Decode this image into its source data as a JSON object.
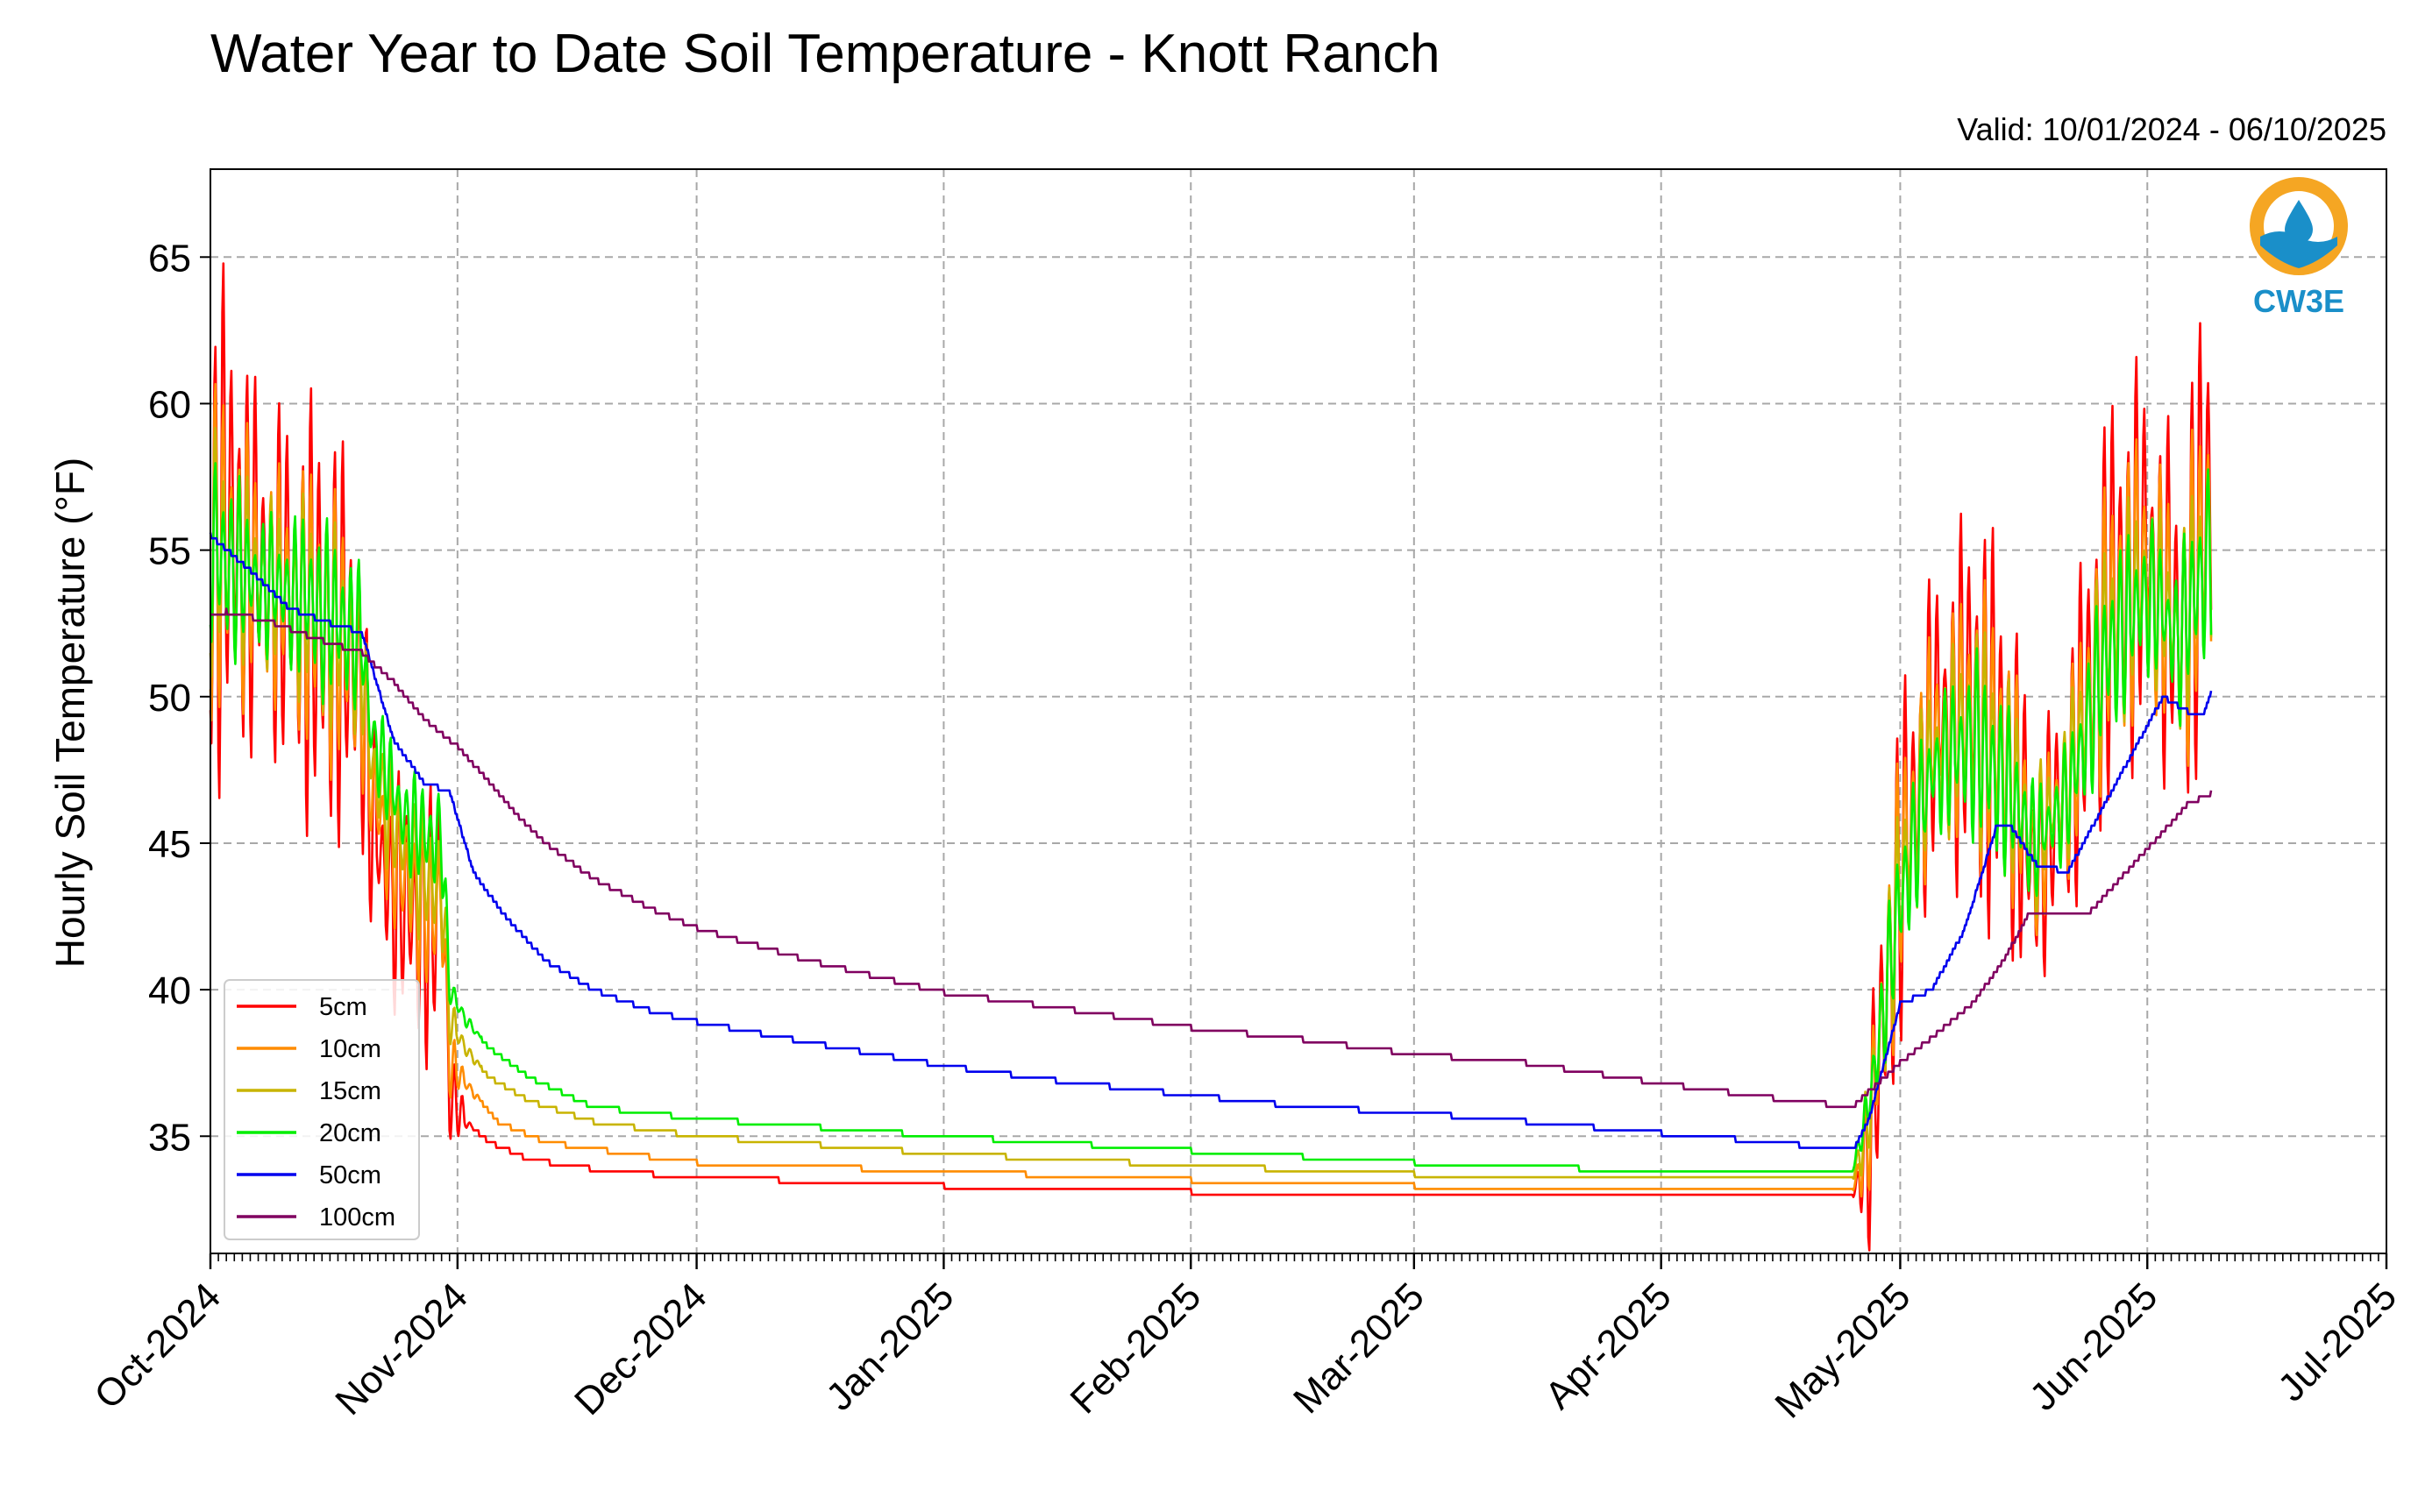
{
  "chart_data": {
    "type": "line",
    "title": "Water Year to Date Soil Temperature - Knott Ranch",
    "subtitle": "Valid: 10/01/2024 - 06/10/2025",
    "ylabel": "Hourly Soil Temperature (°F)",
    "xlabel": "",
    "x_range": [
      "2024-10-01",
      "2025-07-01"
    ],
    "ylim": [
      31,
      68
    ],
    "yticks": [
      35,
      40,
      45,
      50,
      55,
      60,
      65
    ],
    "xticks": [
      {
        "date": "2024-10-01",
        "label": "Oct-2024"
      },
      {
        "date": "2024-11-01",
        "label": "Nov-2024"
      },
      {
        "date": "2024-12-01",
        "label": "Dec-2024"
      },
      {
        "date": "2025-01-01",
        "label": "Jan-2025"
      },
      {
        "date": "2025-02-01",
        "label": "Feb-2025"
      },
      {
        "date": "2025-03-01",
        "label": "Mar-2025"
      },
      {
        "date": "2025-04-01",
        "label": "Apr-2025"
      },
      {
        "date": "2025-05-01",
        "label": "May-2025"
      },
      {
        "date": "2025-06-01",
        "label": "Jun-2025"
      },
      {
        "date": "2025-07-01",
        "label": "Jul-2025"
      }
    ],
    "grid": true,
    "legend_position": "lower-left",
    "series": [
      {
        "name": "5cm",
        "color": "#ff0000",
        "points": [
          [
            "2024-10-01",
            55.0
          ],
          [
            "2024-10-03",
            56.0
          ],
          [
            "2024-10-06",
            54.5
          ],
          [
            "2024-10-09",
            54.0
          ],
          [
            "2024-10-13",
            53.0
          ],
          [
            "2024-10-17",
            52.0
          ],
          [
            "2024-10-20",
            50.5
          ],
          [
            "2024-10-21",
            46.0
          ],
          [
            "2024-10-23",
            44.0
          ],
          [
            "2024-10-25",
            43.0
          ],
          [
            "2024-10-27",
            42.5
          ],
          [
            "2024-10-29",
            42.0
          ],
          [
            "2024-10-30",
            44.0
          ],
          [
            "2024-10-31",
            36.5
          ],
          [
            "2024-11-02",
            35.5
          ],
          [
            "2024-11-05",
            34.8
          ],
          [
            "2024-11-10",
            34.2
          ],
          [
            "2024-11-20",
            33.8
          ],
          [
            "2024-12-01",
            33.6
          ],
          [
            "2025-01-01",
            33.3
          ],
          [
            "2025-02-01",
            33.1
          ],
          [
            "2025-03-01",
            33.0
          ],
          [
            "2025-04-01",
            32.9
          ],
          [
            "2025-04-25",
            32.9
          ],
          [
            "2025-04-27",
            34.5
          ],
          [
            "2025-05-01",
            44.0
          ],
          [
            "2025-05-05",
            49.0
          ],
          [
            "2025-05-10",
            50.0
          ],
          [
            "2025-05-14",
            48.0
          ],
          [
            "2025-05-18",
            44.0
          ],
          [
            "2025-05-22",
            47.0
          ],
          [
            "2025-05-27",
            53.0
          ],
          [
            "2025-06-01",
            55.0
          ],
          [
            "2025-06-05",
            52.0
          ],
          [
            "2025-06-09",
            57.0
          ]
        ],
        "amplitude": [
          [
            "2024-10-01",
            7.5
          ],
          [
            "2024-10-20",
            6.0
          ],
          [
            "2024-10-21",
            4.5
          ],
          [
            "2024-10-30",
            4.0
          ],
          [
            "2024-10-31",
            1.5
          ],
          [
            "2024-11-03",
            0.0
          ],
          [
            "2025-04-25",
            0.0
          ],
          [
            "2025-04-27",
            3.0
          ],
          [
            "2025-05-01",
            5.5
          ],
          [
            "2025-05-10",
            6.5
          ],
          [
            "2025-05-20",
            4.5
          ],
          [
            "2025-06-01",
            7.0
          ],
          [
            "2025-06-09",
            7.0
          ]
        ]
      },
      {
        "name": "10cm",
        "color": "#ff8c00",
        "points": [
          [
            "2024-10-01",
            55.0
          ],
          [
            "2024-10-06",
            54.3
          ],
          [
            "2024-10-13",
            53.2
          ],
          [
            "2024-10-20",
            51.0
          ],
          [
            "2024-10-21",
            47.0
          ],
          [
            "2024-10-25",
            44.0
          ],
          [
            "2024-10-29",
            42.5
          ],
          [
            "2024-10-30",
            43.5
          ],
          [
            "2024-10-31",
            37.5
          ],
          [
            "2024-11-03",
            36.5
          ],
          [
            "2024-11-06",
            35.5
          ],
          [
            "2024-11-12",
            34.8
          ],
          [
            "2024-11-25",
            34.3
          ],
          [
            "2024-12-01",
            34.1
          ],
          [
            "2025-01-01",
            33.8
          ],
          [
            "2025-02-01",
            33.5
          ],
          [
            "2025-03-01",
            33.3
          ],
          [
            "2025-04-01",
            33.1
          ],
          [
            "2025-04-25",
            33.1
          ],
          [
            "2025-04-27",
            35.0
          ],
          [
            "2025-05-01",
            44.0
          ],
          [
            "2025-05-05",
            48.5
          ],
          [
            "2025-05-10",
            49.5
          ],
          [
            "2025-05-14",
            48.0
          ],
          [
            "2025-05-18",
            44.5
          ],
          [
            "2025-05-22",
            47.0
          ],
          [
            "2025-05-27",
            52.5
          ],
          [
            "2025-06-01",
            54.5
          ],
          [
            "2025-06-05",
            52.0
          ],
          [
            "2025-06-09",
            56.0
          ]
        ],
        "amplitude": [
          [
            "2024-10-01",
            5.0
          ],
          [
            "2024-10-20",
            4.0
          ],
          [
            "2024-10-21",
            3.0
          ],
          [
            "2024-10-30",
            2.5
          ],
          [
            "2024-10-31",
            1.0
          ],
          [
            "2024-11-04",
            0.0
          ],
          [
            "2025-04-25",
            0.0
          ],
          [
            "2025-04-27",
            2.0
          ],
          [
            "2025-05-01",
            4.0
          ],
          [
            "2025-05-10",
            4.5
          ],
          [
            "2025-05-20",
            3.0
          ],
          [
            "2025-06-01",
            5.0
          ],
          [
            "2025-06-09",
            5.0
          ]
        ]
      },
      {
        "name": "15cm",
        "color": "#c8b400",
        "points": [
          [
            "2024-10-01",
            55.0
          ],
          [
            "2024-10-06",
            54.2
          ],
          [
            "2024-10-13",
            53.3
          ],
          [
            "2024-10-20",
            51.5
          ],
          [
            "2024-10-21",
            48.0
          ],
          [
            "2024-10-25",
            45.0
          ],
          [
            "2024-10-29",
            43.5
          ],
          [
            "2024-10-30",
            44.0
          ],
          [
            "2024-10-31",
            39.0
          ],
          [
            "2024-11-02",
            38.0
          ],
          [
            "2024-11-05",
            37.0
          ],
          [
            "2024-11-10",
            36.2
          ],
          [
            "2024-11-18",
            35.5
          ],
          [
            "2024-12-01",
            35.0
          ],
          [
            "2025-01-01",
            34.4
          ],
          [
            "2025-02-01",
            34.0
          ],
          [
            "2025-03-01",
            33.7
          ],
          [
            "2025-04-01",
            33.5
          ],
          [
            "2025-04-25",
            33.5
          ],
          [
            "2025-04-27",
            35.5
          ],
          [
            "2025-05-01",
            43.5
          ],
          [
            "2025-05-05",
            48.0
          ],
          [
            "2025-05-10",
            49.0
          ],
          [
            "2025-05-14",
            47.5
          ],
          [
            "2025-05-18",
            45.0
          ],
          [
            "2025-05-22",
            47.0
          ],
          [
            "2025-05-27",
            52.0
          ],
          [
            "2025-06-01",
            54.0
          ],
          [
            "2025-06-05",
            52.0
          ],
          [
            "2025-06-09",
            55.5
          ]
        ],
        "amplitude": [
          [
            "2024-10-01",
            3.5
          ],
          [
            "2024-10-20",
            3.0
          ],
          [
            "2024-10-21",
            2.5
          ],
          [
            "2024-10-30",
            2.0
          ],
          [
            "2024-10-31",
            0.8
          ],
          [
            "2024-11-04",
            0.0
          ],
          [
            "2025-04-25",
            0.0
          ],
          [
            "2025-04-27",
            1.5
          ],
          [
            "2025-05-01",
            3.0
          ],
          [
            "2025-05-10",
            3.5
          ],
          [
            "2025-05-20",
            2.5
          ],
          [
            "2025-06-01",
            3.5
          ],
          [
            "2025-06-09",
            3.5
          ]
        ]
      },
      {
        "name": "20cm",
        "color": "#00ee00",
        "points": [
          [
            "2024-10-01",
            55.0
          ],
          [
            "2024-10-06",
            54.0
          ],
          [
            "2024-10-13",
            53.4
          ],
          [
            "2024-10-20",
            52.0
          ],
          [
            "2024-10-21",
            49.0
          ],
          [
            "2024-10-25",
            46.0
          ],
          [
            "2024-10-29",
            45.0
          ],
          [
            "2024-10-30",
            45.5
          ],
          [
            "2024-10-31",
            40.0
          ],
          [
            "2024-11-02",
            39.0
          ],
          [
            "2024-11-05",
            38.0
          ],
          [
            "2024-11-10",
            37.0
          ],
          [
            "2024-11-18",
            36.0
          ],
          [
            "2024-12-01",
            35.6
          ],
          [
            "2025-01-01",
            35.0
          ],
          [
            "2025-02-01",
            34.5
          ],
          [
            "2025-03-01",
            34.1
          ],
          [
            "2025-04-01",
            33.8
          ],
          [
            "2025-04-25",
            33.8
          ],
          [
            "2025-04-27",
            36.0
          ],
          [
            "2025-05-01",
            43.0
          ],
          [
            "2025-05-05",
            47.5
          ],
          [
            "2025-05-10",
            48.5
          ],
          [
            "2025-05-14",
            47.0
          ],
          [
            "2025-05-18",
            45.0
          ],
          [
            "2025-05-22",
            46.5
          ],
          [
            "2025-05-27",
            51.5
          ],
          [
            "2025-06-01",
            53.5
          ],
          [
            "2025-06-05",
            52.0
          ],
          [
            "2025-06-09",
            55.0
          ]
        ],
        "amplitude": [
          [
            "2024-10-01",
            3.0
          ],
          [
            "2024-10-20",
            2.5
          ],
          [
            "2024-10-21",
            2.0
          ],
          [
            "2024-10-30",
            1.5
          ],
          [
            "2024-10-31",
            0.6
          ],
          [
            "2024-11-04",
            0.0
          ],
          [
            "2025-04-25",
            0.0
          ],
          [
            "2025-04-27",
            1.0
          ],
          [
            "2025-05-01",
            2.5
          ],
          [
            "2025-05-10",
            3.0
          ],
          [
            "2025-05-20",
            2.0
          ],
          [
            "2025-06-01",
            3.0
          ],
          [
            "2025-06-09",
            3.0
          ]
        ]
      },
      {
        "name": "50cm",
        "color": "#0000ee",
        "points": [
          [
            "2024-10-01",
            55.5
          ],
          [
            "2024-10-06",
            54.3
          ],
          [
            "2024-10-11",
            53.0
          ],
          [
            "2024-10-16",
            52.5
          ],
          [
            "2024-10-20",
            52.2
          ],
          [
            "2024-10-24",
            48.5
          ],
          [
            "2024-10-28",
            47.0
          ],
          [
            "2024-10-31",
            46.8
          ],
          [
            "2024-11-03",
            44.0
          ],
          [
            "2024-11-07",
            42.5
          ],
          [
            "2024-11-12",
            41.0
          ],
          [
            "2024-11-18",
            40.0
          ],
          [
            "2024-11-25",
            39.3
          ],
          [
            "2024-12-01",
            38.9
          ],
          [
            "2024-12-15",
            38.2
          ],
          [
            "2025-01-01",
            37.4
          ],
          [
            "2025-01-15",
            36.9
          ],
          [
            "2025-02-01",
            36.4
          ],
          [
            "2025-02-15",
            36.0
          ],
          [
            "2025-03-01",
            35.8
          ],
          [
            "2025-03-15",
            35.5
          ],
          [
            "2025-04-01",
            35.1
          ],
          [
            "2025-04-15",
            34.8
          ],
          [
            "2025-04-25",
            34.5
          ],
          [
            "2025-04-27",
            35.5
          ],
          [
            "2025-05-01",
            39.5
          ],
          [
            "2025-05-05",
            40.0
          ],
          [
            "2025-05-09",
            42.0
          ],
          [
            "2025-05-13",
            45.5
          ],
          [
            "2025-05-15",
            45.5
          ],
          [
            "2025-05-18",
            44.3
          ],
          [
            "2025-05-22",
            44.0
          ],
          [
            "2025-05-26",
            46.0
          ],
          [
            "2025-05-31",
            48.5
          ],
          [
            "2025-06-03",
            50.0
          ],
          [
            "2025-06-06",
            49.5
          ],
          [
            "2025-06-08",
            49.3
          ],
          [
            "2025-06-09",
            50.2
          ]
        ],
        "amplitude": [
          [
            "2024-10-01",
            0.0
          ],
          [
            "2025-07-01",
            0.0
          ]
        ]
      },
      {
        "name": "100cm",
        "color": "#800060",
        "points": [
          [
            "2024-10-01",
            52.7
          ],
          [
            "2024-10-03",
            52.9
          ],
          [
            "2024-10-08",
            52.6
          ],
          [
            "2024-10-14",
            52.0
          ],
          [
            "2024-10-20",
            51.5
          ],
          [
            "2024-10-24",
            50.5
          ],
          [
            "2024-10-28",
            49.2
          ],
          [
            "2024-11-01",
            48.3
          ],
          [
            "2024-11-04",
            47.4
          ],
          [
            "2024-11-08",
            46.1
          ],
          [
            "2024-11-12",
            45.0
          ],
          [
            "2024-11-18",
            43.8
          ],
          [
            "2024-11-25",
            42.8
          ],
          [
            "2024-12-01",
            42.1
          ],
          [
            "2024-12-15",
            41.0
          ],
          [
            "2025-01-01",
            39.9
          ],
          [
            "2025-01-15",
            39.4
          ],
          [
            "2025-02-01",
            38.7
          ],
          [
            "2025-02-15",
            38.3
          ],
          [
            "2025-03-01",
            37.8
          ],
          [
            "2025-03-15",
            37.5
          ],
          [
            "2025-04-01",
            36.8
          ],
          [
            "2025-04-15",
            36.3
          ],
          [
            "2025-04-25",
            36.0
          ],
          [
            "2025-05-01",
            37.5
          ],
          [
            "2025-05-06",
            38.6
          ],
          [
            "2025-05-10",
            39.5
          ],
          [
            "2025-05-14",
            41.0
          ],
          [
            "2025-05-17",
            42.5
          ],
          [
            "2025-05-25",
            42.7
          ],
          [
            "2025-06-01",
            44.8
          ],
          [
            "2025-06-06",
            46.3
          ],
          [
            "2025-06-09",
            46.7
          ]
        ],
        "amplitude": [
          [
            "2024-10-01",
            0.0
          ],
          [
            "2025-07-01",
            0.0
          ]
        ]
      }
    ]
  },
  "logo": {
    "text": "CW3E",
    "ring_color": "#f5a623",
    "water_color": "#1a8fc9",
    "text_color": "#1a8fc9"
  }
}
